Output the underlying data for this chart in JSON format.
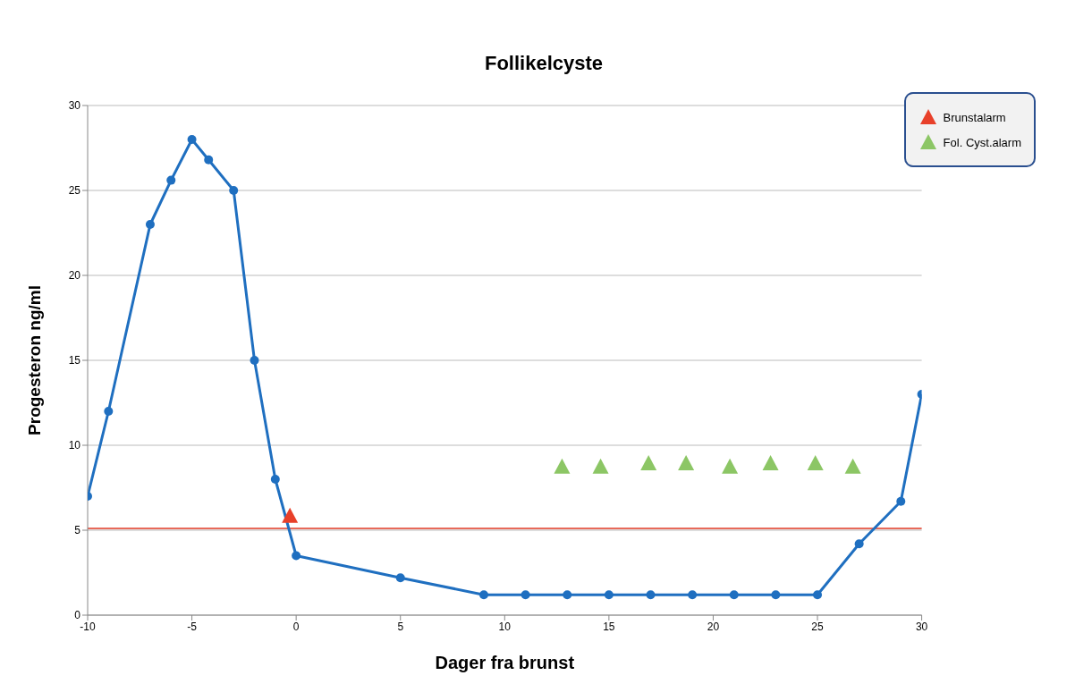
{
  "chart_data": {
    "type": "line",
    "title": "Follikelcyste",
    "xlabel": "Dager fra brunst",
    "ylabel": "Progesteron ng/ml",
    "xlim": [
      -10,
      30
    ],
    "xticks": [
      -10,
      -5,
      0,
      5,
      10,
      15,
      20,
      25,
      30
    ],
    "ylim": [
      0,
      30
    ],
    "yticks": [
      0,
      5,
      10,
      15,
      20,
      25,
      30
    ],
    "grid": "y",
    "legend": "top right",
    "marker": "circle",
    "line_style": "solid",
    "series": [
      {
        "color": "#1f6fc0",
        "x": [
          -10,
          -9,
          -7,
          -6,
          -5,
          -4.2,
          -3,
          -2,
          -1,
          0,
          5,
          9,
          11,
          13,
          15,
          17,
          19,
          21,
          23,
          25,
          27,
          29,
          30
        ],
        "values": [
          7,
          12,
          23,
          25.6,
          28,
          26.8,
          25,
          15,
          8,
          3.5,
          2.2,
          1.2,
          1.2,
          1.2,
          1.2,
          1.2,
          1.2,
          1.2,
          1.2,
          1.2,
          4.2,
          6.7,
          13
        ]
      },
      {
        "type": "scatter",
        "name": "Brunstalarm",
        "color": "#e8402a",
        "marker": "triangle",
        "x": [
          -0.3
        ],
        "values": [
          5.8
        ]
      },
      {
        "type": "scatter",
        "name": "Fol. Cyst.alarm",
        "color": "#8cc665",
        "marker": "triangle",
        "x": [
          12.75,
          14.6,
          16.9,
          18.7,
          20.8,
          22.75,
          24.9,
          26.7
        ],
        "values": [
          8.7,
          8.7,
          8.9,
          8.9,
          8.7,
          8.9,
          8.9,
          8.7
        ]
      }
    ],
    "ref_lines": [
      {
        "axis": "y",
        "value": 5.1,
        "color": "#e86a5a"
      }
    ]
  }
}
